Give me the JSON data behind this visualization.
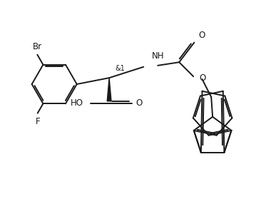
{
  "bg_color": "#ffffff",
  "line_color": "#1a1a1a",
  "line_width": 1.4,
  "font_size": 8.5,
  "figsize": [
    3.87,
    2.86
  ],
  "dpi": 100,
  "xlim": [
    0,
    10
  ],
  "ylim": [
    0,
    7.4
  ]
}
